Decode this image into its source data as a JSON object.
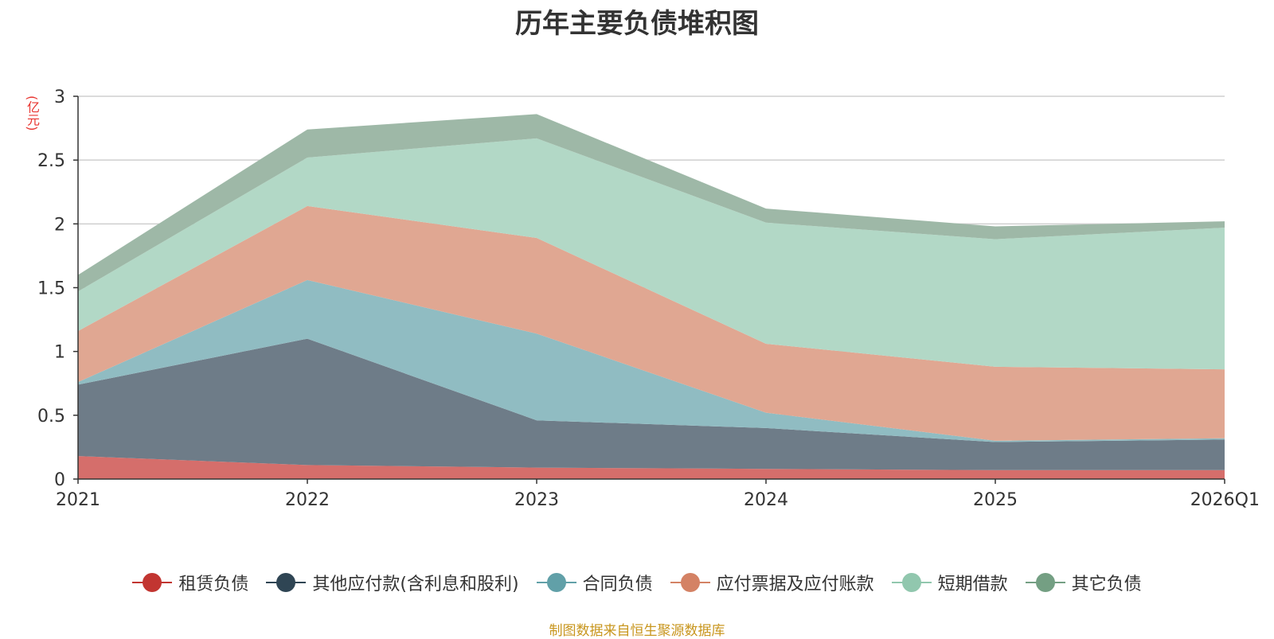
{
  "chart_data": {
    "type": "area",
    "stacked": true,
    "title": "历年主要负债堆积图",
    "unit_label": "(亿元)",
    "categories": [
      "2021",
      "2022",
      "2023",
      "2024",
      "2025",
      "2026Q1"
    ],
    "ylim": [
      0,
      3
    ],
    "yticks": [
      "0",
      "0.5",
      "1",
      "1.5",
      "2",
      "2.5",
      "3"
    ],
    "ytick_values": [
      0,
      0.5,
      1,
      1.5,
      2,
      2.5,
      3
    ],
    "grid": true,
    "legend_position": "bottom",
    "series": [
      {
        "name": "租赁负债",
        "values": [
          0.18,
          0.11,
          0.09,
          0.08,
          0.07,
          0.07
        ],
        "color": "#c23531",
        "fill": "#d56e6b"
      },
      {
        "name": "其他应付款(含利息和股利)",
        "values": [
          0.56,
          0.99,
          0.37,
          0.32,
          0.22,
          0.24
        ],
        "color": "#2f4554",
        "fill": "#6e7c88"
      },
      {
        "name": "合同负债",
        "values": [
          0.02,
          0.46,
          0.68,
          0.12,
          0.01,
          0.01
        ],
        "color": "#61a0a8",
        "fill": "#90bcc2"
      },
      {
        "name": "应付票据及应付账款",
        "values": [
          0.4,
          0.58,
          0.75,
          0.54,
          0.58,
          0.54
        ],
        "color": "#d48265",
        "fill": "#e0a792"
      },
      {
        "name": "短期借款",
        "values": [
          0.31,
          0.38,
          0.78,
          0.95,
          1.0,
          1.11
        ],
        "color": "#91c7ae",
        "fill": "#b2d8c6"
      },
      {
        "name": "其它负债",
        "values": [
          0.13,
          0.22,
          0.19,
          0.11,
          0.1,
          0.05
        ],
        "color": "#749f83",
        "fill": "#9eb8a7"
      }
    ]
  },
  "footer": {
    "source_note": "制图数据来自恒生聚源数据库"
  }
}
